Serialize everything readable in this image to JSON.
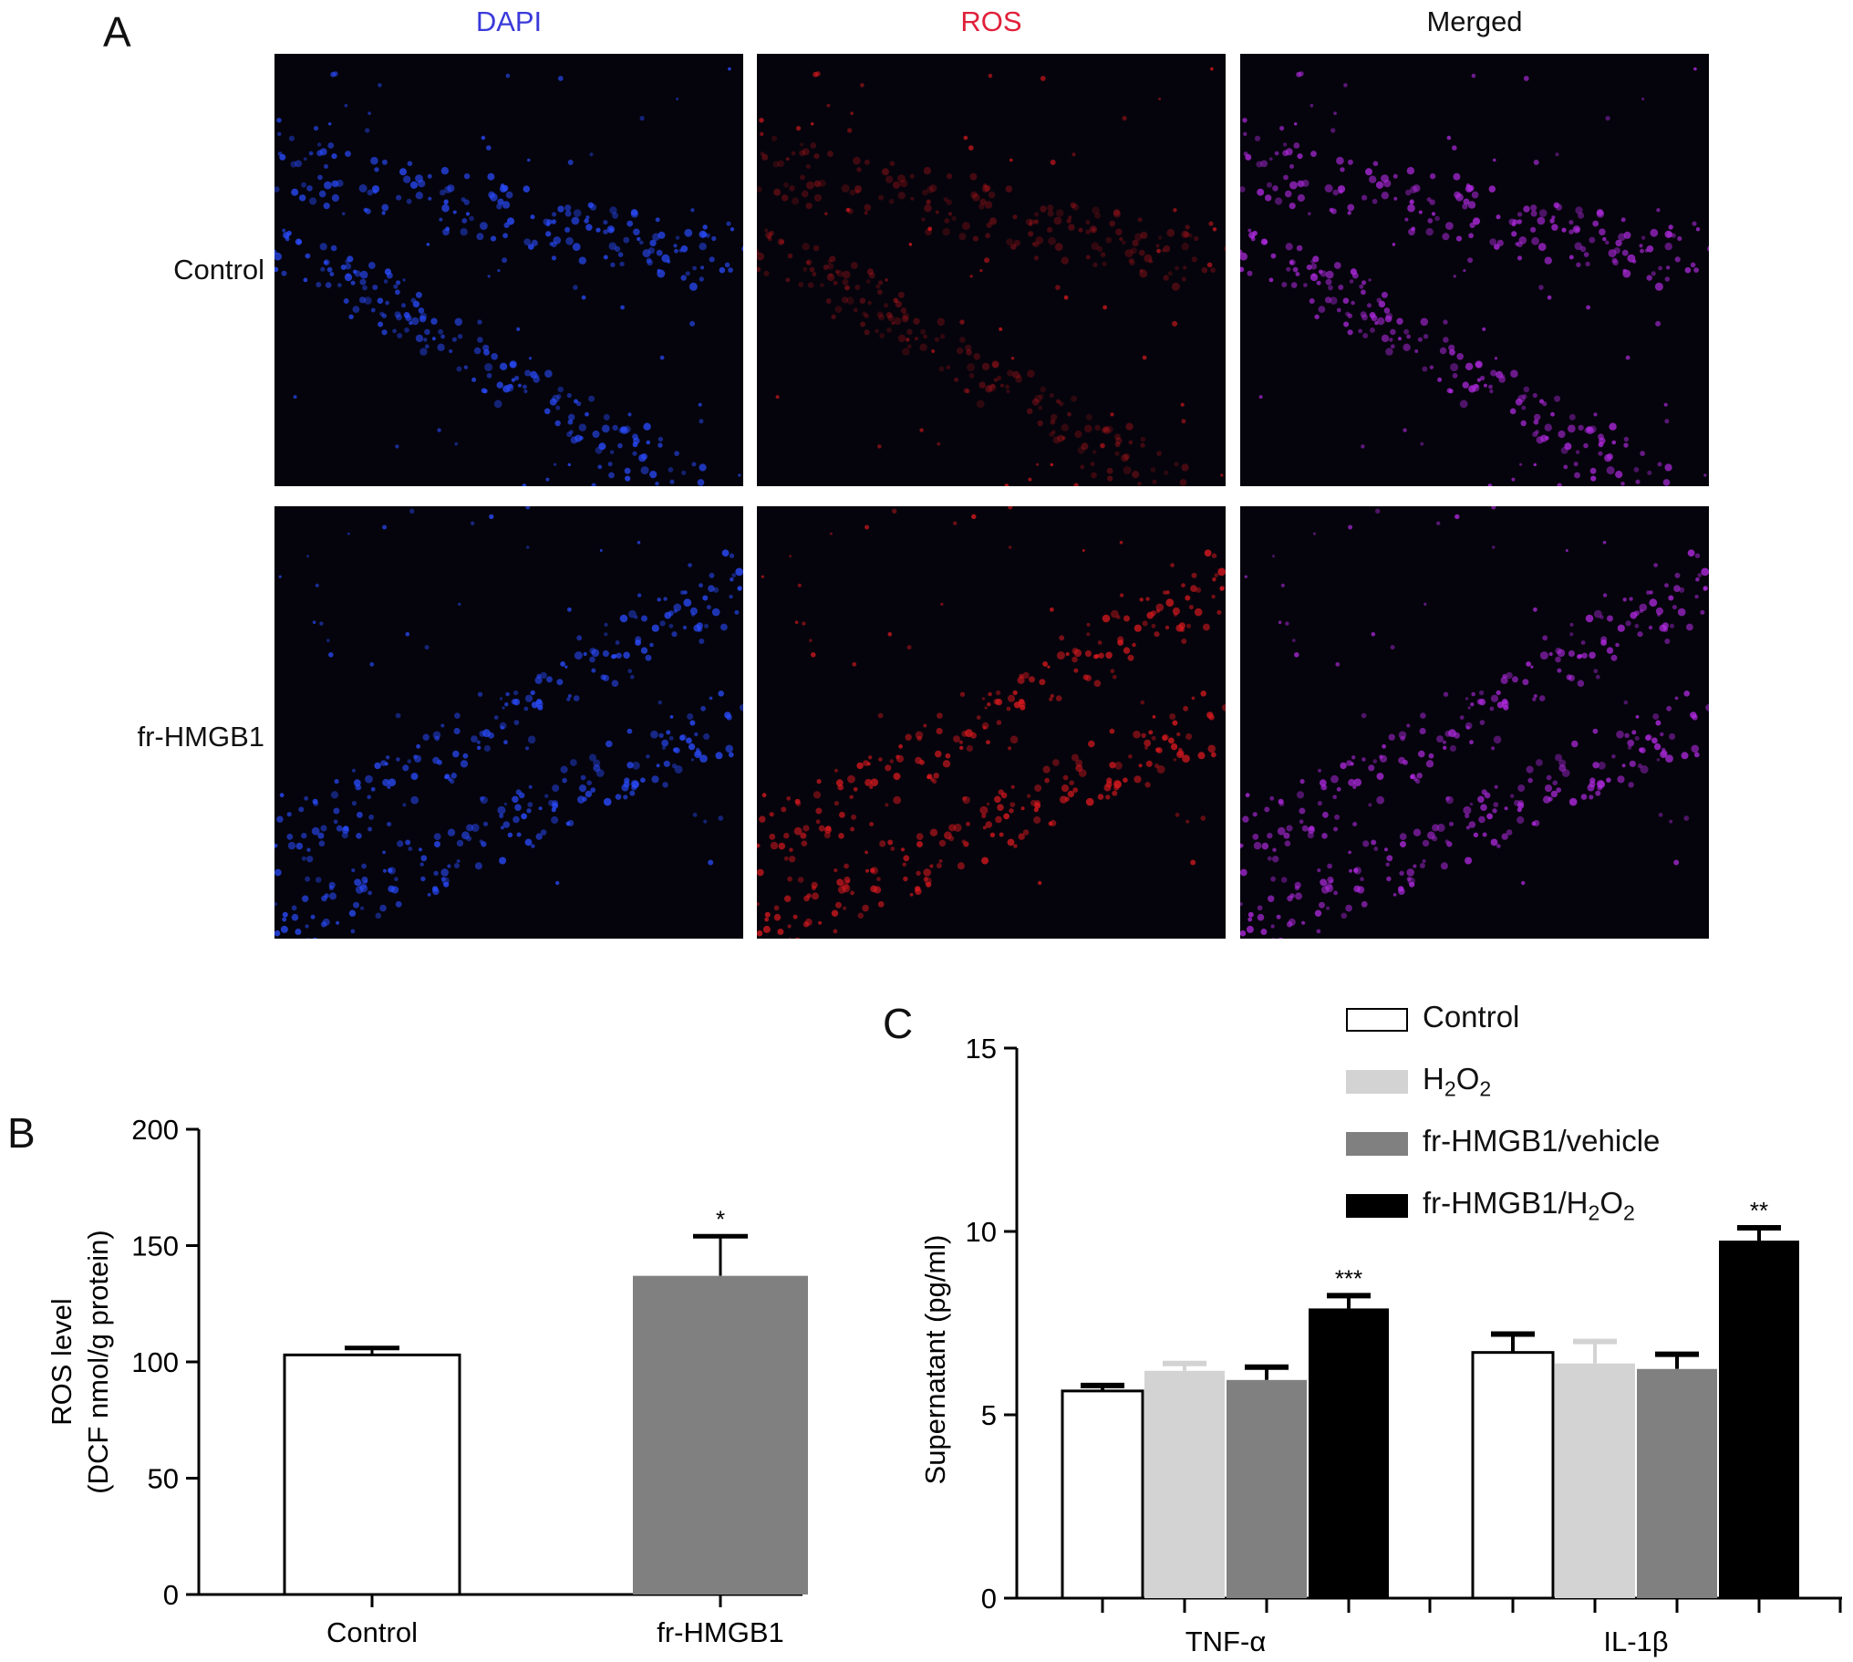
{
  "panels": {
    "a": "A",
    "b": "B",
    "c": "C"
  },
  "micrographs": {
    "columns": [
      {
        "label": "DAPI",
        "color": "#3a3adb"
      },
      {
        "label": "ROS",
        "color": "#e0203a"
      },
      {
        "label": "Merged",
        "color": "#111111"
      }
    ],
    "rows": [
      "Control",
      "fr-HMGB1"
    ],
    "stain_colors": {
      "DAPI": "#2a4cff",
      "ROS": "#d8191f",
      "Merged": "#b02ae0"
    }
  },
  "chart_data": [
    {
      "panel": "B",
      "type": "bar",
      "ylabel_lines": [
        "ROS level",
        "(DCF nmol/g protein)"
      ],
      "categories": [
        "Control",
        "fr-HMGB1"
      ],
      "values": [
        103,
        137
      ],
      "errors": [
        3,
        17
      ],
      "significance": [
        "",
        "*"
      ],
      "bar_colors": [
        "#ffffff",
        "#808080"
      ],
      "ylim": [
        0,
        200
      ],
      "yticks": [
        0,
        50,
        100,
        150,
        200
      ],
      "grid": false
    },
    {
      "panel": "C",
      "type": "bar",
      "ylabel": "Supernatant (pg/ml)",
      "categories": [
        "TNF-α",
        "IL-1β"
      ],
      "series": [
        {
          "name": "Control",
          "color": "#ffffff",
          "values": [
            5.65,
            6.7
          ],
          "errors": [
            0.15,
            0.5
          ]
        },
        {
          "name": "H2O2",
          "color": "#d3d3d3",
          "values": [
            6.2,
            6.4
          ],
          "errors": [
            0.2,
            0.6
          ]
        },
        {
          "name": "fr-HMGB1/vehicle",
          "color": "#808080",
          "values": [
            5.95,
            6.25
          ],
          "errors": [
            0.35,
            0.4
          ]
        },
        {
          "name": "fr-HMGB1/H2O2",
          "color": "#000000",
          "values": [
            7.9,
            9.75
          ],
          "errors": [
            0.35,
            0.35
          ]
        }
      ],
      "significance": [
        [
          "",
          "",
          "",
          "***"
        ],
        [
          "",
          "",
          "",
          "**"
        ]
      ],
      "ylim": [
        0,
        15
      ],
      "yticks": [
        0,
        5,
        10,
        15
      ],
      "legend": "top-right",
      "grid": false
    }
  ]
}
